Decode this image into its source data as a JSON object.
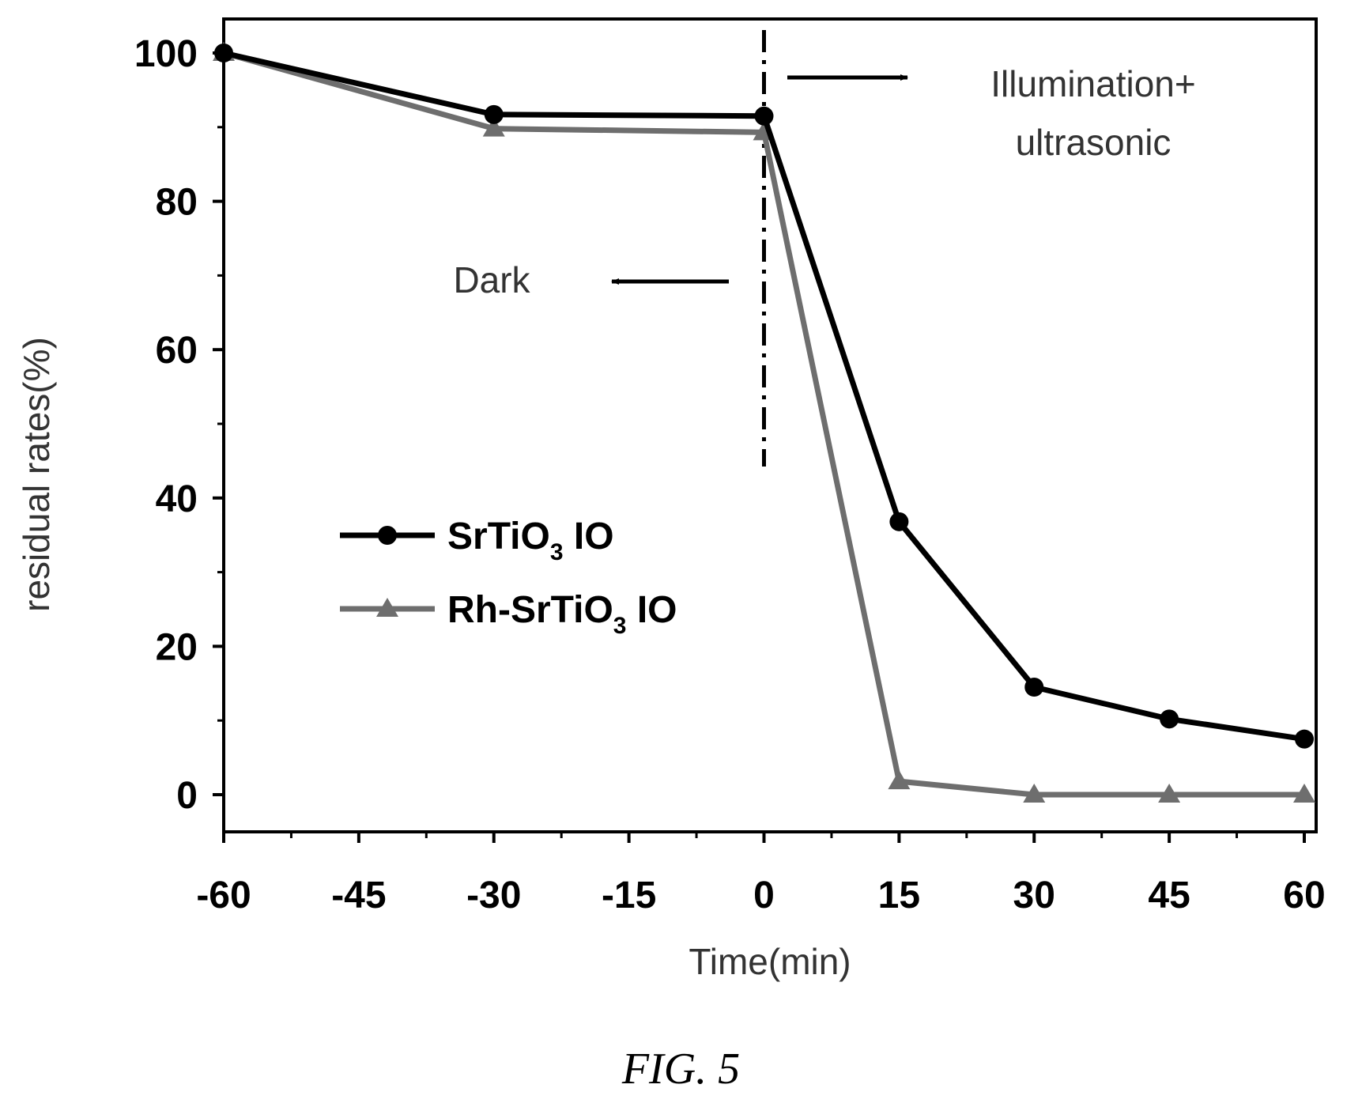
{
  "caption": "FIG. 5",
  "chart_data": {
    "type": "line",
    "xlabel": "Time(min)",
    "ylabel": "residual rates(%)",
    "xlim": [
      -60,
      60
    ],
    "ylim": [
      -5,
      105
    ],
    "xticks": [
      -60,
      -45,
      -30,
      -15,
      0,
      15,
      30,
      45,
      60
    ],
    "yticks": [
      0,
      20,
      40,
      60,
      80,
      100
    ],
    "grid": false,
    "legend_position": "center-left",
    "series": [
      {
        "name": "SrTiO3 IO",
        "name_parts": [
          "SrTiO",
          "3",
          " IO"
        ],
        "marker": "circle",
        "color": "#000000",
        "x": [
          -60,
          -30,
          0,
          15,
          30,
          45,
          60
        ],
        "y": [
          100,
          91.7,
          91.5,
          36.8,
          14.5,
          10.2,
          7.5
        ]
      },
      {
        "name": "Rh-SrTiO3 IO",
        "name_parts": [
          "Rh-SrTiO",
          "3",
          " IO"
        ],
        "marker": "triangle",
        "color": "#6e6e6e",
        "x": [
          -60,
          -30,
          0,
          15,
          30,
          45,
          60
        ],
        "y": [
          100,
          89.8,
          89.3,
          1.8,
          0,
          0,
          0
        ]
      }
    ],
    "annotations": {
      "divider_x": 0,
      "dark_label": "Dark",
      "light_label_line1": "Illumination+",
      "light_label_line2": "ultrasonic"
    }
  }
}
